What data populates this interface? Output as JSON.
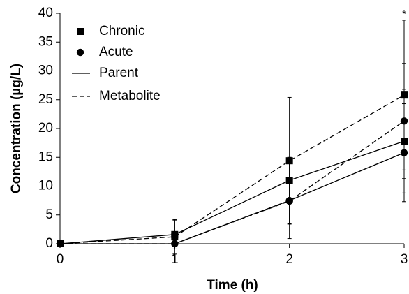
{
  "chart_data": {
    "type": "line",
    "xlabel": "Time (h)",
    "ylabel": "Concentration (µg/L)",
    "x": [
      0,
      1,
      2,
      3
    ],
    "xlim": [
      0,
      3
    ],
    "xticks": [
      0,
      1,
      2,
      3
    ],
    "ylim": [
      0,
      40
    ],
    "yticks": [
      0,
      5,
      10,
      15,
      20,
      25,
      30,
      35,
      40
    ],
    "grid": false,
    "color": "#000000",
    "legend": [
      {
        "label": "Chronic",
        "marker": "square"
      },
      {
        "label": "Acute",
        "marker": "circle"
      },
      {
        "label": "Parent",
        "dash": false
      },
      {
        "label": "Metabolite",
        "dash": true
      }
    ],
    "series": [
      {
        "marker": "square",
        "dash": false,
        "values": [
          0,
          1.6,
          11.0,
          17.8
        ],
        "errors": [
          0,
          2.5,
          4,
          9
        ]
      },
      {
        "marker": "square",
        "dash": true,
        "values": [
          0,
          1.2,
          14.4,
          25.8
        ],
        "errors": [
          0,
          3,
          11,
          13
        ]
      },
      {
        "marker": "circle",
        "dash": false,
        "values": [
          0,
          0,
          7.5,
          15.8
        ],
        "errors": [
          0,
          0.5,
          4,
          8.5
        ]
      },
      {
        "marker": "circle",
        "dash": true,
        "values": [
          0,
          0,
          7.4,
          21.3
        ],
        "errors": [
          0,
          0.5,
          6.5,
          10
        ]
      }
    ],
    "annotation": "*"
  }
}
